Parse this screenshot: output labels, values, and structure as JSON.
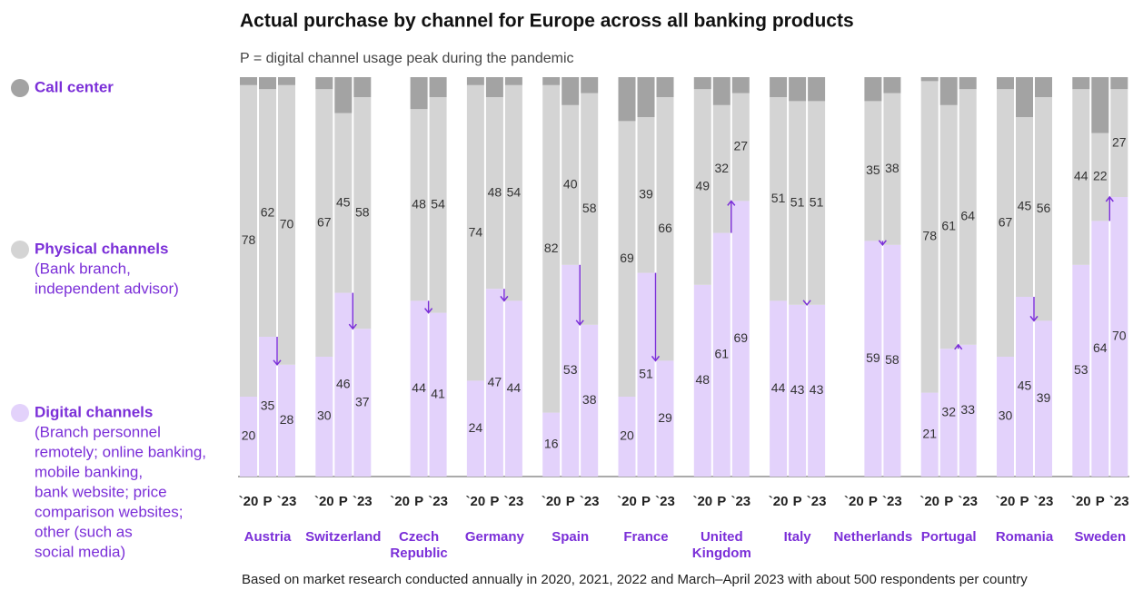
{
  "chart_data": {
    "type": "stacked-bar",
    "title": "Actual purchase by channel for Europe across all banking products",
    "subtitle": "P = digital channel usage  peak during the pandemic",
    "footnote": "Based on market research conducted annually in 2020, 2021, 2022 and March–April 2023 with about 500 respondents per country",
    "groups": [
      "Austria",
      "Switzerland",
      "Czech Republic",
      "Germany",
      "Spain",
      "France",
      "United Kingdom",
      "Italy",
      "Netherlands",
      "Portugal",
      "Romania",
      "Sweden"
    ],
    "sub_labels": [
      "`20",
      "P",
      "`23"
    ],
    "ylim": [
      0,
      100
    ],
    "series": [
      {
        "name": "Digital channels",
        "description": [
          "(Branch personnel",
          "remotely; online banking,",
          "mobile banking,",
          "bank website; price",
          "comparison websites;",
          "other (such as",
          "social media)"
        ],
        "color": "#e3d2fb",
        "values": [
          20,
          35,
          28,
          30,
          46,
          37,
          null,
          44,
          41,
          24,
          47,
          44,
          16,
          53,
          38,
          20,
          51,
          29,
          48,
          61,
          69,
          44,
          43,
          43,
          null,
          59,
          58,
          21,
          32,
          33,
          30,
          45,
          39,
          53,
          64,
          70
        ]
      },
      {
        "name": "Physical channels",
        "description": [
          "(Bank branch,",
          "independent advisor)"
        ],
        "color": "#d4d4d4",
        "values": [
          78,
          62,
          70,
          67,
          45,
          58,
          null,
          48,
          54,
          74,
          48,
          54,
          82,
          40,
          58,
          69,
          39,
          66,
          49,
          32,
          27,
          51,
          51,
          51,
          null,
          35,
          38,
          78,
          61,
          64,
          67,
          45,
          56,
          44,
          22,
          27
        ]
      },
      {
        "name": "Call center",
        "description": [],
        "color": "#a3a3a3",
        "values": [
          2,
          3,
          2,
          3,
          9,
          5,
          null,
          8,
          5,
          2,
          5,
          2,
          2,
          7,
          4,
          11,
          10,
          5,
          3,
          7,
          4,
          5,
          6,
          6,
          null,
          6,
          4,
          1,
          7,
          3,
          3,
          10,
          5,
          3,
          14,
          3
        ]
      }
    ]
  }
}
